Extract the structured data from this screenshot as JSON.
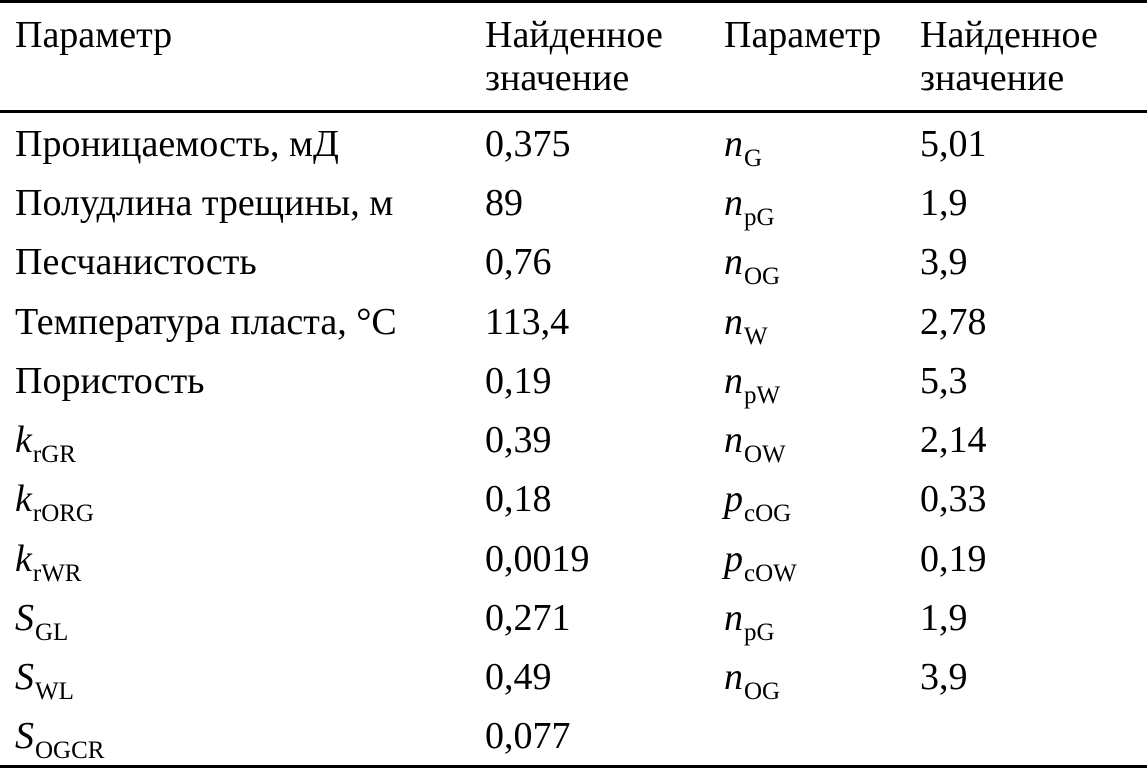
{
  "header": {
    "col1": "Параметр",
    "col2_line1": "Найденное",
    "col2_line2": "значение",
    "col3": "Параметр",
    "col4_line1": "Найденное",
    "col4_line2": "значение"
  },
  "rows": [
    {
      "left_param": "Проницаемость, мД",
      "left_value": "0,375",
      "right_sym": "n",
      "right_sub": "G",
      "right_value": "5,01"
    },
    {
      "left_param": "Полудлина трещины, м",
      "left_value": "89",
      "right_sym": "n",
      "right_sub": "pG",
      "right_value": "1,9"
    },
    {
      "left_param": "Песчанистость",
      "left_value": "0,76",
      "right_sym": "n",
      "right_sub": "OG",
      "right_value": "3,9"
    },
    {
      "left_param": "Температура пласта, °C",
      "left_value": "113,4",
      "right_sym": "n",
      "right_sub": "W",
      "right_value": "2,78"
    },
    {
      "left_param": "Пористость",
      "left_value": "0,19",
      "right_sym": "n",
      "right_sub": "pW",
      "right_value": "5,3"
    },
    {
      "left_sym": "k",
      "left_sub": "rGR",
      "left_value": "0,39",
      "right_sym": "n",
      "right_sub": "OW",
      "right_value": "2,14"
    },
    {
      "left_sym": "k",
      "left_sub": "rORG",
      "left_value": "0,18",
      "right_sym": "p",
      "right_sub": "cOG",
      "right_value": "0,33"
    },
    {
      "left_sym": "k",
      "left_sub": "rWR",
      "left_value": "0,0019",
      "right_sym": "p",
      "right_sub": "cOW",
      "right_value": "0,19"
    },
    {
      "left_sym": "S",
      "left_sub": "GL",
      "left_value": "0,271",
      "right_sym": "n",
      "right_sub": "pG",
      "right_value": "1,9"
    },
    {
      "left_sym": "S",
      "left_sub": "WL",
      "left_value": "0,49",
      "right_sym": "n",
      "right_sub": "OG",
      "right_value": "3,9"
    },
    {
      "left_sym": "S",
      "left_sub": "OGCR",
      "left_value": "0,077"
    }
  ]
}
